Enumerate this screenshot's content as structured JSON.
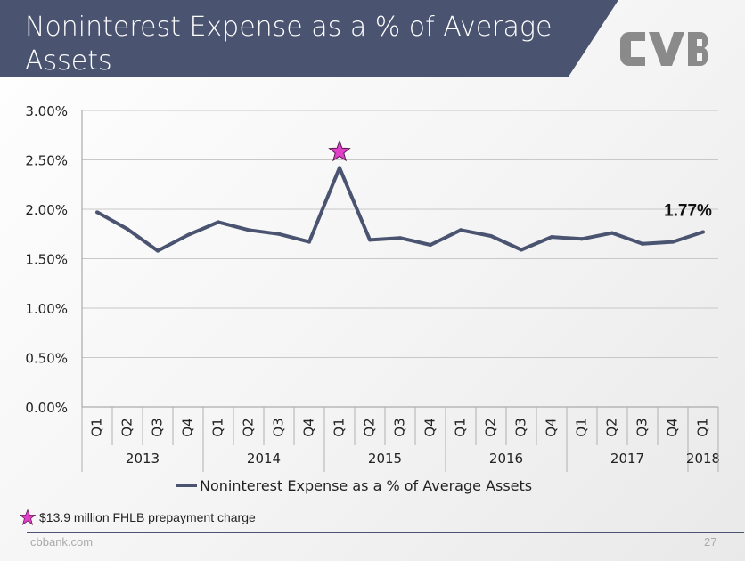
{
  "slide": {
    "title": "Noninterest Expense as a % of Average Assets",
    "footer_site": "cbbank.com",
    "page_number": "27",
    "note": "$13.9 million FHLB prepayment charge",
    "colors": {
      "title_bar": "#4a5470",
      "line": "#4a5470",
      "star": "#e040c8",
      "logo": "#8a8a8a"
    }
  },
  "chart_data": {
    "type": "line",
    "title": "",
    "xlabel": "",
    "ylabel": "",
    "ylim": [
      0,
      0.03
    ],
    "y_ticks": [
      "0.00%",
      "0.50%",
      "1.00%",
      "1.50%",
      "2.00%",
      "2.50%",
      "3.00%"
    ],
    "categories": [
      "Q1",
      "Q2",
      "Q3",
      "Q4",
      "Q1",
      "Q2",
      "Q3",
      "Q4",
      "Q1",
      "Q2",
      "Q3",
      "Q4",
      "Q1",
      "Q2",
      "Q3",
      "Q4",
      "Q1",
      "Q2",
      "Q3",
      "Q4",
      "Q1"
    ],
    "years": [
      {
        "label": "2013",
        "quarters": 4
      },
      {
        "label": "2014",
        "quarters": 4
      },
      {
        "label": "2015",
        "quarters": 4
      },
      {
        "label": "2016",
        "quarters": 4
      },
      {
        "label": "2017",
        "quarters": 4
      },
      {
        "label": "2018",
        "quarters": 1
      }
    ],
    "series": [
      {
        "name": "Noninterest Expense as a % of Average Assets",
        "values": [
          0.0197,
          0.018,
          0.0158,
          0.0174,
          0.0187,
          0.0179,
          0.0175,
          0.0167,
          0.0242,
          0.0169,
          0.0171,
          0.0164,
          0.0179,
          0.0173,
          0.0159,
          0.0172,
          0.017,
          0.0176,
          0.0165,
          0.0167,
          0.0177
        ]
      }
    ],
    "last_label": "1.77%",
    "star_index": 8,
    "legend_position": "bottom",
    "grid": true
  }
}
